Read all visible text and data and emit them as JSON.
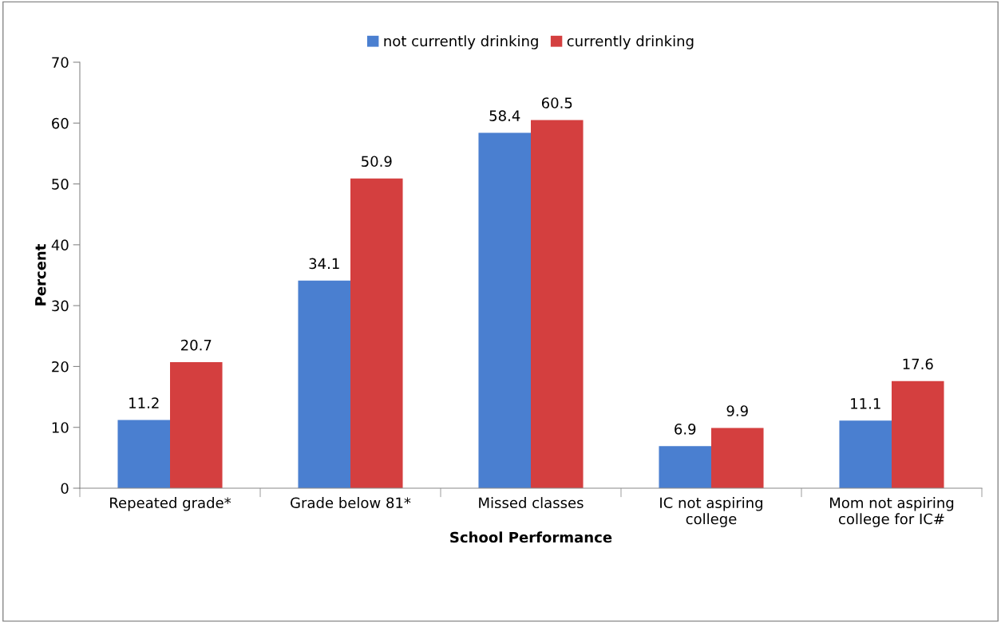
{
  "chart_data": {
    "type": "bar",
    "xlabel": "School Performance",
    "ylabel": "Percent",
    "categories": [
      "Repeated grade*",
      "Grade below 81*",
      "Missed classes",
      "IC not aspiring\ncollege",
      "Mom not aspiring\ncollege for IC#"
    ],
    "series": [
      {
        "name": "not currently drinking",
        "color": "#4a7fd0",
        "values": [
          11.2,
          34.1,
          58.4,
          6.9,
          11.1
        ]
      },
      {
        "name": "currently drinking",
        "color": "#d43f3f",
        "values": [
          20.7,
          50.9,
          60.5,
          9.9,
          17.6
        ]
      }
    ],
    "ylim": [
      0,
      70
    ],
    "yticks": [
      0,
      10,
      20,
      30,
      40,
      50,
      60,
      70
    ],
    "grid": false,
    "legend": "top",
    "data_labels": true
  }
}
